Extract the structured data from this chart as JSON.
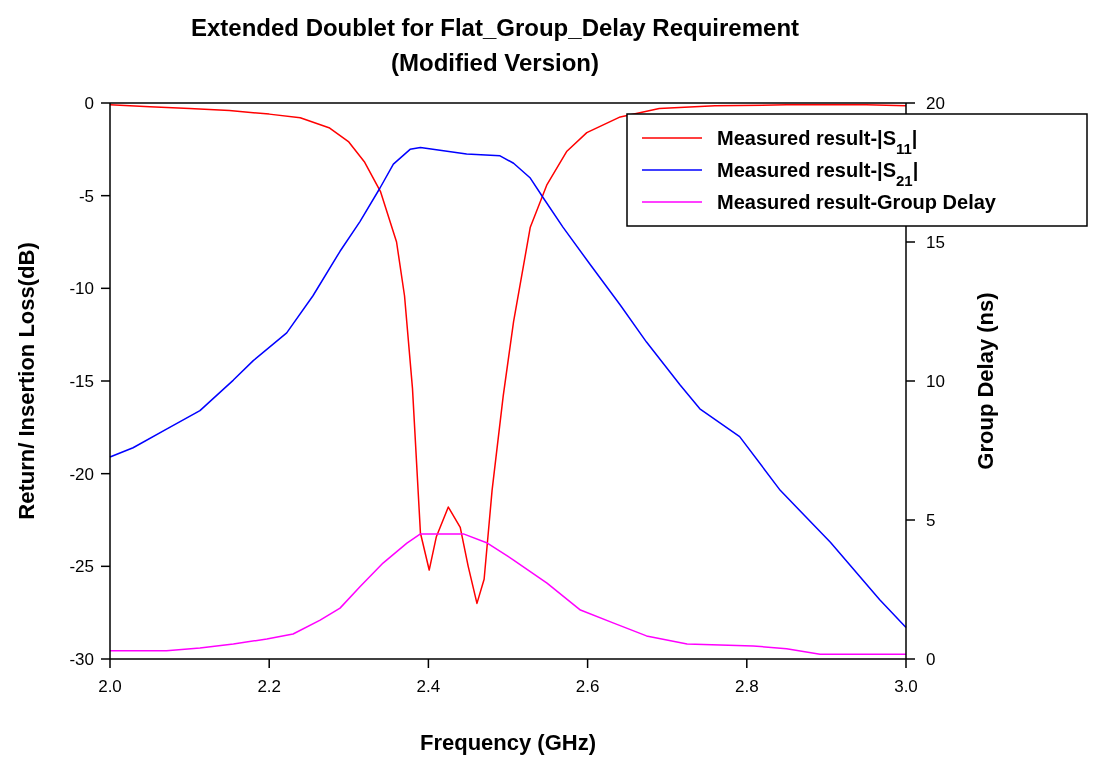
{
  "chart_data": {
    "type": "line",
    "title": "Extended Doublet for Flat_Group_Delay Requirement\n(Modified Version)",
    "xlabel": "Frequency (GHz)",
    "ylabel": "Return/ Insertion Loss(dB)",
    "y2label": "Group Delay (ns)",
    "xlim": [
      2.0,
      3.0
    ],
    "xticks": [
      {
        "value": 2.0,
        "label": "2.0"
      },
      2.2,
      2.4,
      2.6,
      2.8,
      {
        "value": 3.0,
        "label": "3.0"
      }
    ],
    "ylim": [
      -30,
      0
    ],
    "yticks": [
      -30,
      -25,
      -20,
      -15,
      -10,
      -5,
      0
    ],
    "y2lim": [
      0,
      20
    ],
    "y2ticks": [
      0,
      5,
      10,
      15,
      20
    ],
    "legend": "top right",
    "grid": false,
    "series": [
      {
        "name": "Measured result-|S$_{11}$|",
        "color": "#ff0000",
        "x": [
          2.0,
          2.05,
          2.1,
          2.15,
          2.2,
          2.239,
          2.276,
          2.3,
          2.32,
          2.34,
          2.36,
          2.37,
          2.38,
          2.39,
          2.401,
          2.41,
          2.425,
          2.44,
          2.45,
          2.461,
          2.47,
          2.48,
          2.494,
          2.507,
          2.528,
          2.549,
          2.574,
          2.599,
          2.641,
          2.69,
          2.76,
          2.85,
          2.95,
          3.0
        ],
        "values": [
          -0.1,
          -0.2,
          -0.3,
          -0.4,
          -0.6,
          -0.8,
          -1.35,
          -2.1,
          -3.2,
          -4.8,
          -7.5,
          -10.4,
          -15.4,
          -23.2,
          -25.2,
          -23.4,
          -21.8,
          -22.9,
          -25.0,
          -27.0,
          -25.7,
          -20.9,
          -15.8,
          -11.8,
          -6.7,
          -4.4,
          -2.6,
          -1.6,
          -0.75,
          -0.3,
          -0.15,
          -0.1,
          -0.1,
          -0.15
        ]
      },
      {
        "name": "Measured result-|S$_{21}$|",
        "color": "#0000ff",
        "x": [
          2.0,
          2.029,
          2.071,
          2.113,
          2.155,
          2.18,
          2.222,
          2.255,
          2.289,
          2.314,
          2.339,
          2.356,
          2.377,
          2.39,
          2.448,
          2.49,
          2.507,
          2.528,
          2.544,
          2.569,
          2.603,
          2.641,
          2.674,
          2.716,
          2.741,
          2.791,
          2.842,
          2.905,
          2.967,
          3.0
        ],
        "values": [
          -19.1,
          -18.6,
          -17.6,
          -16.6,
          -14.95,
          -13.9,
          -12.4,
          -10.4,
          -8.0,
          -6.4,
          -4.6,
          -3.3,
          -2.5,
          -2.4,
          -2.75,
          -2.85,
          -3.25,
          -4.05,
          -5.1,
          -6.7,
          -8.7,
          -10.9,
          -12.9,
          -15.2,
          -16.5,
          -18.0,
          -20.9,
          -23.7,
          -26.8,
          -28.3
        ]
      },
      {
        "name": "Measured result-Group Delay",
        "color": "#ff00ff",
        "axis": "y2",
        "x": [
          2.0,
          2.071,
          2.113,
          2.155,
          2.197,
          2.23,
          2.264,
          2.289,
          2.314,
          2.343,
          2.373,
          2.39,
          2.444,
          2.474,
          2.507,
          2.549,
          2.591,
          2.632,
          2.674,
          2.725,
          2.808,
          2.85,
          2.892,
          3.0
        ],
        "values": [
          0.3,
          0.3,
          0.4,
          0.54,
          0.72,
          0.9,
          1.4,
          1.83,
          2.6,
          3.45,
          4.17,
          4.5,
          4.5,
          4.17,
          3.56,
          2.73,
          1.76,
          1.3,
          0.83,
          0.54,
          0.47,
          0.37,
          0.17,
          0.17
        ]
      }
    ]
  }
}
